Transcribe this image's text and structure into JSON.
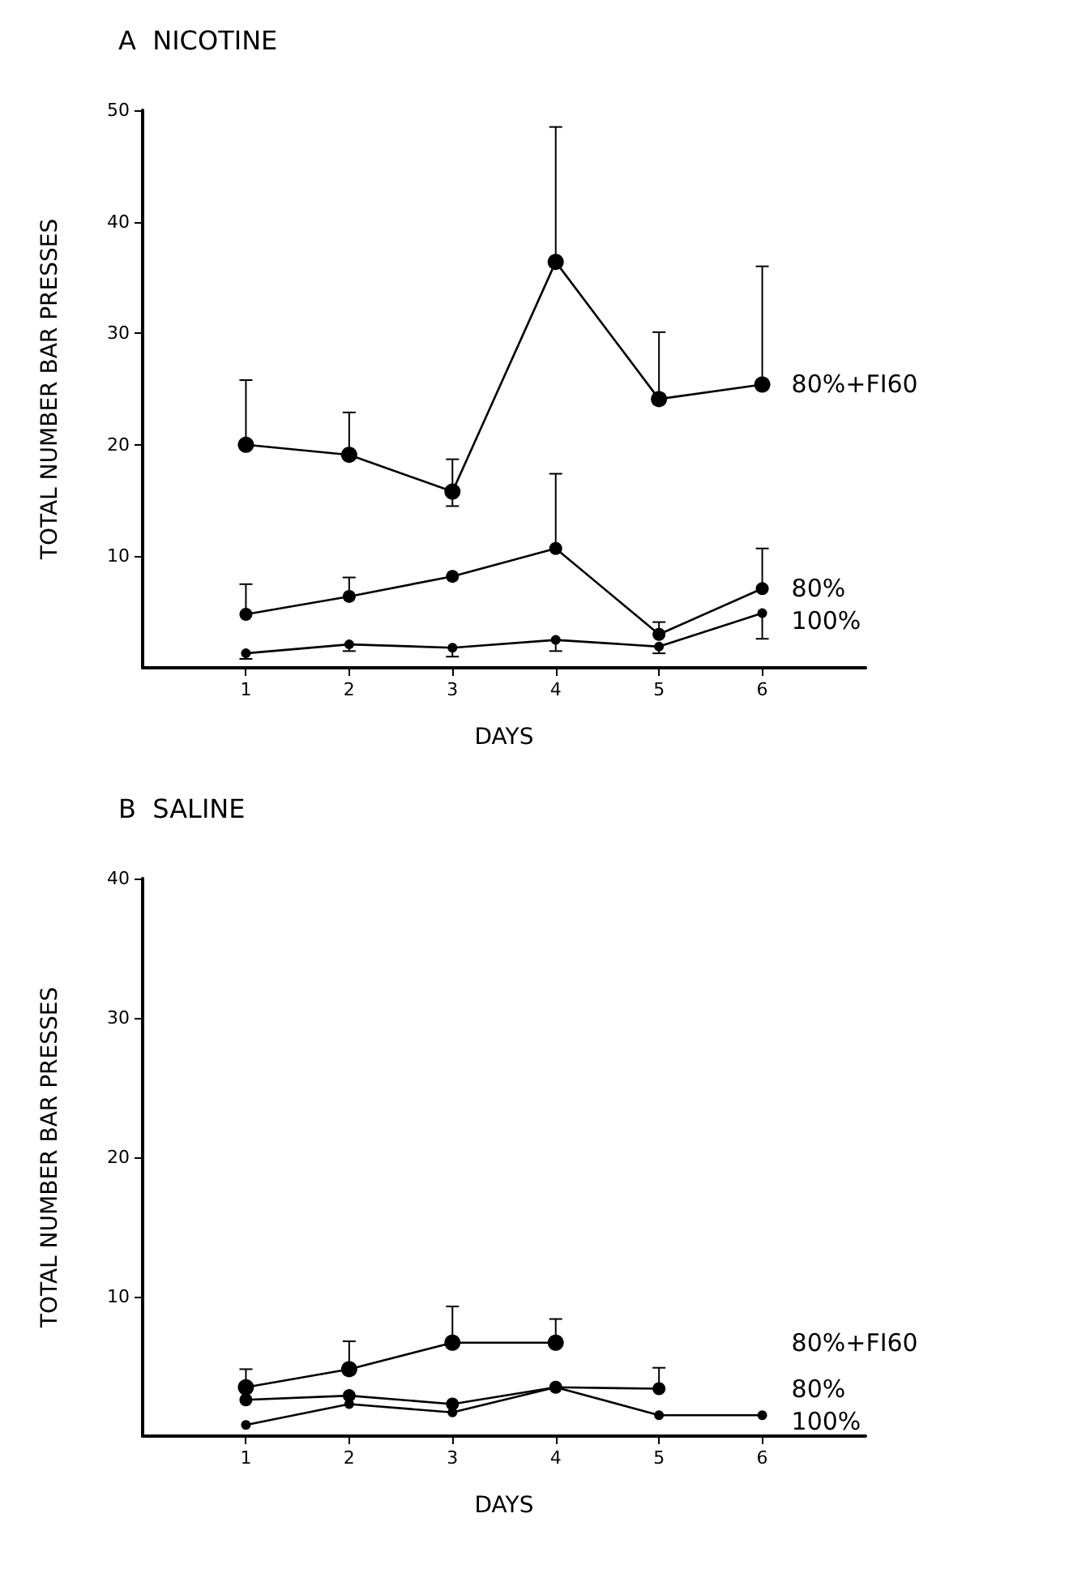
{
  "chart_data": [
    {
      "type": "line",
      "title": "A  NICOTINE",
      "xlabel": "DAYS",
      "ylabel": "TOTAL NUMBER BAR PRESSES",
      "x": [
        1,
        2,
        3,
        4,
        5,
        6
      ],
      "xlim": [
        0,
        7
      ],
      "xticks": [
        1,
        2,
        3,
        4,
        5,
        6
      ],
      "ylim": [
        0,
        50
      ],
      "yticks": [
        10,
        20,
        30,
        40,
        50
      ],
      "grid": false,
      "legend": false,
      "marker": "circle",
      "line_style": "solid",
      "series": [
        {
          "name": "80%+FI60",
          "color": "#000000",
          "values": [
            20.0,
            19.1,
            15.8,
            36.4,
            24.1,
            25.4
          ],
          "errors": [
            [
              20.0,
              25.8
            ],
            [
              19.1,
              22.9
            ],
            [
              14.5,
              18.7
            ],
            [
              36.4,
              48.5
            ],
            [
              24.1,
              30.1
            ],
            [
              25.4,
              36.0
            ]
          ]
        },
        {
          "name": "80%",
          "color": "#000000",
          "values": [
            4.8,
            6.4,
            8.2,
            10.7,
            3.0,
            7.1
          ],
          "errors": [
            [
              4.8,
              7.5
            ],
            [
              6.4,
              8.1
            ],
            null,
            [
              10.7,
              17.4
            ],
            [
              3.0,
              4.1
            ],
            [
              7.1,
              10.7
            ]
          ]
        },
        {
          "name": "100%",
          "color": "#000000",
          "values": [
            1.3,
            2.1,
            1.8,
            2.5,
            1.9,
            4.9
          ],
          "errors": [
            [
              0.8,
              1.3
            ],
            [
              1.5,
              2.1
            ],
            [
              1.0,
              1.8
            ],
            [
              1.5,
              2.5
            ],
            [
              1.3,
              1.9
            ],
            [
              2.6,
              4.9
            ]
          ]
        }
      ]
    },
    {
      "type": "line",
      "title": "B  SALINE",
      "xlabel": "DAYS",
      "ylabel": "TOTAL NUMBER BAR PRESSES",
      "x": [
        1,
        2,
        3,
        4,
        5,
        6
      ],
      "xlim": [
        0,
        7
      ],
      "xticks": [
        1,
        2,
        3,
        4,
        5,
        6
      ],
      "ylim": [
        0,
        40
      ],
      "yticks": [
        10,
        20,
        30,
        40
      ],
      "grid": false,
      "legend": false,
      "marker": "circle",
      "line_style": "solid",
      "series": [
        {
          "name": "80%+FI60",
          "color": "#000000",
          "values": [
            3.5,
            4.8,
            6.7,
            6.7,
            null,
            null
          ],
          "errors": [
            [
              3.5,
              4.8
            ],
            [
              4.8,
              6.8
            ],
            [
              6.7,
              9.3
            ],
            [
              6.7,
              8.4
            ],
            null,
            null
          ]
        },
        {
          "name": "80%",
          "color": "#000000",
          "values": [
            2.6,
            2.9,
            2.3,
            3.5,
            3.4,
            null
          ],
          "errors": [
            null,
            null,
            null,
            null,
            [
              3.4,
              4.9
            ],
            null
          ]
        },
        {
          "name": "100%",
          "color": "#000000",
          "values": [
            0.8,
            2.3,
            1.7,
            3.5,
            1.5,
            1.5
          ],
          "errors": [
            null,
            null,
            null,
            null,
            null,
            null
          ]
        }
      ]
    }
  ]
}
